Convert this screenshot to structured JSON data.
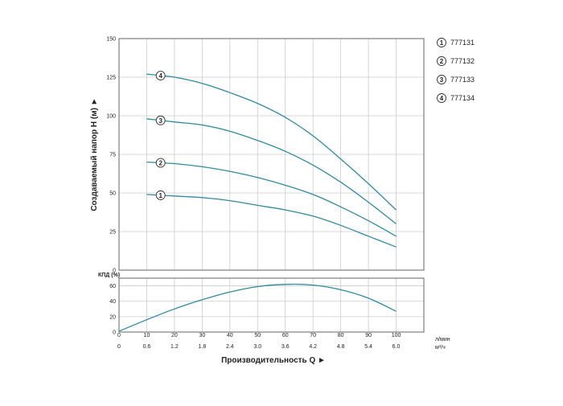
{
  "chart_data": [
    {
      "id": "head",
      "type": "line",
      "ylabel": "Создаваемый напор H (м) ►",
      "xlim": [
        0,
        110
      ],
      "ylim": [
        0,
        150
      ],
      "yticks": [
        "0",
        "25",
        "50",
        "75",
        "100",
        "125",
        "150"
      ],
      "grid": true,
      "legend_position": "top-right",
      "series": [
        {
          "name": "777131",
          "marker": "1",
          "x": [
            10,
            20,
            30,
            40,
            50,
            60,
            70,
            80,
            90,
            100
          ],
          "y": [
            49,
            48,
            47,
            45,
            42,
            39,
            35,
            29,
            22,
            15
          ]
        },
        {
          "name": "777132",
          "marker": "2",
          "x": [
            10,
            20,
            30,
            40,
            50,
            60,
            70,
            80,
            90,
            100
          ],
          "y": [
            70,
            69,
            67,
            64,
            60,
            55,
            49,
            41,
            32,
            22
          ]
        },
        {
          "name": "777133",
          "marker": "3",
          "x": [
            10,
            20,
            30,
            40,
            50,
            60,
            70,
            80,
            90,
            100
          ],
          "y": [
            98,
            96,
            94,
            90,
            84,
            77,
            68,
            57,
            44,
            30
          ]
        },
        {
          "name": "777134",
          "marker": "4",
          "x": [
            10,
            20,
            30,
            40,
            50,
            60,
            70,
            80,
            90,
            100
          ],
          "y": [
            127,
            125,
            121,
            115,
            108,
            99,
            87,
            72,
            56,
            39
          ]
        }
      ]
    },
    {
      "id": "efficiency",
      "type": "line",
      "ylabel": "КПД (%)",
      "xlabel": "Производительность Q ►",
      "xlim": [
        0,
        110
      ],
      "ylim": [
        0,
        70
      ],
      "yticks": [
        "0",
        "20",
        "40",
        "60"
      ],
      "grid": true,
      "x_primary_unit": "л/мин",
      "x_secondary_unit": "м³/ч",
      "x_primary_ticks": [
        0,
        10,
        20,
        30,
        40,
        50,
        60,
        70,
        80,
        90,
        100
      ],
      "x_primary_labels": [
        "0",
        "10",
        "20",
        "30",
        "40",
        "50",
        "60",
        "70",
        "80",
        "90",
        "100"
      ],
      "x_secondary_labels": [
        "0",
        "0.6",
        "1.2",
        "1.8",
        "2.4",
        "3.0",
        "3.6",
        "4.2",
        "4.8",
        "5.4",
        "6.0"
      ],
      "series": [
        {
          "x": [
            0,
            10,
            20,
            30,
            40,
            50,
            60,
            70,
            80,
            90,
            100
          ],
          "y": [
            1,
            16,
            30,
            42,
            52,
            59,
            62,
            61,
            55,
            44,
            27
          ]
        }
      ]
    }
  ],
  "colors": {
    "curve": "#2b8ca3",
    "grid": "#cccccc",
    "frame": "#666666"
  }
}
